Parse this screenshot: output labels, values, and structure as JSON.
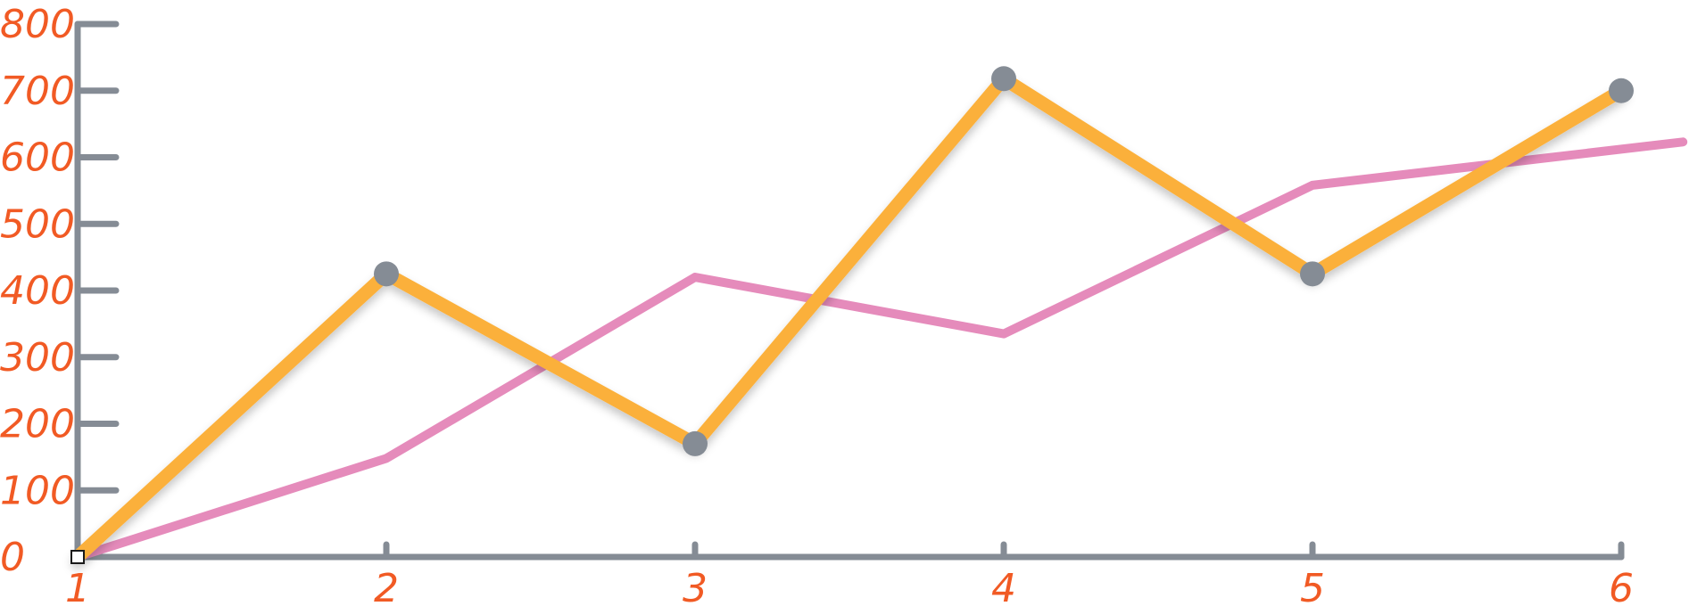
{
  "chart_data": {
    "type": "line",
    "title": "",
    "xlabel": "",
    "ylabel": "",
    "x": [
      1,
      2,
      3,
      4,
      5,
      6
    ],
    "ylim": [
      0,
      800
    ],
    "yticks": [
      "0",
      "100",
      "200",
      "300",
      "400",
      "500",
      "600",
      "700",
      "800"
    ],
    "xticks": [
      "1",
      "2",
      "3",
      "4",
      "5",
      "6"
    ],
    "grid": false,
    "series": [
      {
        "color": "#e58bbb",
        "marker": "none",
        "points": [
          {
            "x": 1,
            "y": 0
          },
          {
            "x": 2,
            "y": 148
          },
          {
            "x": 3,
            "y": 420
          },
          {
            "x": 4,
            "y": 335
          },
          {
            "x": 5,
            "y": 558
          },
          {
            "x": 6.2,
            "y": 623
          }
        ]
      },
      {
        "color": "#fbb03b",
        "marker": "circle",
        "marker_color": "#858c95",
        "points": [
          {
            "x": 1,
            "y": 0
          },
          {
            "x": 2,
            "y": 425
          },
          {
            "x": 3,
            "y": 170
          },
          {
            "x": 4,
            "y": 718
          },
          {
            "x": 5,
            "y": 425
          },
          {
            "x": 6,
            "y": 700
          }
        ]
      }
    ],
    "colors": {
      "axis": "#858c95",
      "tick_label": "#f15a24",
      "origin_marker_fill": "#ffffff",
      "origin_marker_stroke": "#1a1a1a"
    }
  }
}
